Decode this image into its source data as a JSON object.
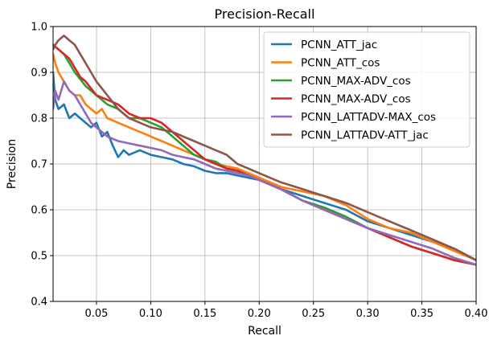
{
  "chart_data": {
    "type": "line",
    "title": "Precision-Recall",
    "xlabel": "Recall",
    "ylabel": "Precision",
    "xlim": [
      0.01,
      0.4
    ],
    "ylim": [
      0.4,
      1.0
    ],
    "xticks": [
      0.05,
      0.1,
      0.15,
      0.2,
      0.25,
      0.3,
      0.35,
      0.4
    ],
    "xtick_labels": [
      "0.05",
      "0.10",
      "0.15",
      "0.20",
      "0.25",
      "0.30",
      "0.35",
      "0.40"
    ],
    "yticks": [
      0.4,
      0.5,
      0.6,
      0.7,
      0.8,
      0.9,
      1.0
    ],
    "ytick_labels": [
      "0.4",
      "0.5",
      "0.6",
      "0.7",
      "0.8",
      "0.9",
      "1.0"
    ],
    "grid": true,
    "legend_position": "upper-right",
    "series": [
      {
        "name": "PCNN_ATT_jac",
        "color": "#1f77b4",
        "x": [
          0.01,
          0.012,
          0.015,
          0.02,
          0.025,
          0.03,
          0.035,
          0.04,
          0.045,
          0.05,
          0.055,
          0.06,
          0.065,
          0.07,
          0.075,
          0.08,
          0.09,
          0.1,
          0.11,
          0.12,
          0.13,
          0.14,
          0.15,
          0.16,
          0.17,
          0.18,
          0.19,
          0.2,
          0.22,
          0.24,
          0.26,
          0.28,
          0.3,
          0.32,
          0.34,
          0.36,
          0.38,
          0.4
        ],
        "y": [
          0.9,
          0.84,
          0.82,
          0.83,
          0.8,
          0.81,
          0.8,
          0.79,
          0.78,
          0.79,
          0.76,
          0.77,
          0.74,
          0.715,
          0.73,
          0.72,
          0.73,
          0.72,
          0.715,
          0.71,
          0.7,
          0.695,
          0.685,
          0.68,
          0.68,
          0.675,
          0.67,
          0.665,
          0.645,
          0.63,
          0.615,
          0.6,
          0.575,
          0.56,
          0.545,
          0.53,
          0.515,
          0.49
        ]
      },
      {
        "name": "PCNN_ATT_cos",
        "color": "#ff7f0e",
        "x": [
          0.01,
          0.012,
          0.015,
          0.02,
          0.025,
          0.03,
          0.035,
          0.04,
          0.045,
          0.05,
          0.055,
          0.06,
          0.07,
          0.08,
          0.09,
          0.1,
          0.11,
          0.12,
          0.13,
          0.14,
          0.15,
          0.16,
          0.17,
          0.18,
          0.19,
          0.2,
          0.22,
          0.24,
          0.26,
          0.28,
          0.3,
          0.32,
          0.34,
          0.36,
          0.38,
          0.4
        ],
        "y": [
          0.94,
          0.92,
          0.9,
          0.88,
          0.86,
          0.85,
          0.85,
          0.83,
          0.82,
          0.81,
          0.82,
          0.8,
          0.79,
          0.78,
          0.77,
          0.76,
          0.75,
          0.74,
          0.73,
          0.72,
          0.71,
          0.7,
          0.695,
          0.69,
          0.68,
          0.67,
          0.65,
          0.64,
          0.63,
          0.61,
          0.58,
          0.56,
          0.55,
          0.53,
          0.51,
          0.49
        ]
      },
      {
        "name": "PCNN_MAX-ADV_cos",
        "color": "#2ca02c",
        "x": [
          0.01,
          0.015,
          0.02,
          0.025,
          0.03,
          0.04,
          0.05,
          0.06,
          0.07,
          0.08,
          0.09,
          0.1,
          0.11,
          0.12,
          0.13,
          0.14,
          0.15,
          0.16,
          0.17,
          0.18,
          0.19,
          0.2,
          0.22,
          0.24,
          0.26,
          0.28,
          0.3,
          0.32,
          0.34,
          0.36,
          0.38,
          0.4
        ],
        "y": [
          0.96,
          0.95,
          0.94,
          0.92,
          0.9,
          0.87,
          0.85,
          0.83,
          0.82,
          0.8,
          0.8,
          0.79,
          0.78,
          0.76,
          0.74,
          0.72,
          0.71,
          0.705,
          0.69,
          0.685,
          0.675,
          0.665,
          0.645,
          0.62,
          0.605,
          0.585,
          0.56,
          0.54,
          0.52,
          0.505,
          0.49,
          0.48
        ]
      },
      {
        "name": "PCNN_MAX-ADV_cos",
        "color": "#d62728",
        "x": [
          0.01,
          0.015,
          0.02,
          0.025,
          0.03,
          0.035,
          0.04,
          0.05,
          0.06,
          0.07,
          0.08,
          0.09,
          0.1,
          0.11,
          0.12,
          0.13,
          0.14,
          0.15,
          0.16,
          0.17,
          0.18,
          0.19,
          0.2,
          0.22,
          0.24,
          0.26,
          0.28,
          0.3,
          0.32,
          0.34,
          0.36,
          0.38,
          0.4
        ],
        "y": [
          0.96,
          0.95,
          0.94,
          0.93,
          0.91,
          0.89,
          0.88,
          0.85,
          0.84,
          0.83,
          0.81,
          0.8,
          0.8,
          0.79,
          0.77,
          0.75,
          0.73,
          0.71,
          0.7,
          0.69,
          0.685,
          0.675,
          0.665,
          0.645,
          0.62,
          0.6,
          0.58,
          0.56,
          0.54,
          0.52,
          0.505,
          0.49,
          0.48
        ]
      },
      {
        "name": "PCNN_LATTADV-MAX_cos",
        "color": "#9467bd",
        "x": [
          0.01,
          0.012,
          0.015,
          0.02,
          0.025,
          0.03,
          0.035,
          0.04,
          0.045,
          0.05,
          0.055,
          0.06,
          0.07,
          0.08,
          0.09,
          0.1,
          0.11,
          0.12,
          0.13,
          0.14,
          0.15,
          0.16,
          0.17,
          0.18,
          0.19,
          0.2,
          0.22,
          0.24,
          0.26,
          0.28,
          0.3,
          0.32,
          0.34,
          0.36,
          0.38,
          0.4
        ],
        "y": [
          0.82,
          0.86,
          0.84,
          0.88,
          0.86,
          0.85,
          0.83,
          0.81,
          0.79,
          0.78,
          0.77,
          0.76,
          0.75,
          0.745,
          0.74,
          0.735,
          0.73,
          0.72,
          0.715,
          0.71,
          0.7,
          0.69,
          0.685,
          0.68,
          0.675,
          0.665,
          0.645,
          0.62,
          0.6,
          0.58,
          0.56,
          0.545,
          0.53,
          0.515,
          0.495,
          0.48
        ]
      },
      {
        "name": "PCNN_LATTADV-ATT_jac",
        "color": "#8c564b",
        "x": [
          0.01,
          0.012,
          0.015,
          0.02,
          0.025,
          0.03,
          0.035,
          0.04,
          0.045,
          0.05,
          0.06,
          0.07,
          0.08,
          0.09,
          0.1,
          0.11,
          0.12,
          0.13,
          0.14,
          0.15,
          0.16,
          0.17,
          0.18,
          0.19,
          0.2,
          0.22,
          0.24,
          0.26,
          0.28,
          0.3,
          0.32,
          0.34,
          0.36,
          0.38,
          0.4
        ],
        "y": [
          0.95,
          0.96,
          0.97,
          0.98,
          0.97,
          0.96,
          0.94,
          0.92,
          0.9,
          0.88,
          0.85,
          0.82,
          0.8,
          0.79,
          0.78,
          0.775,
          0.77,
          0.76,
          0.75,
          0.74,
          0.73,
          0.72,
          0.7,
          0.69,
          0.68,
          0.66,
          0.645,
          0.63,
          0.615,
          0.595,
          0.575,
          0.555,
          0.535,
          0.515,
          0.49
        ]
      }
    ]
  }
}
